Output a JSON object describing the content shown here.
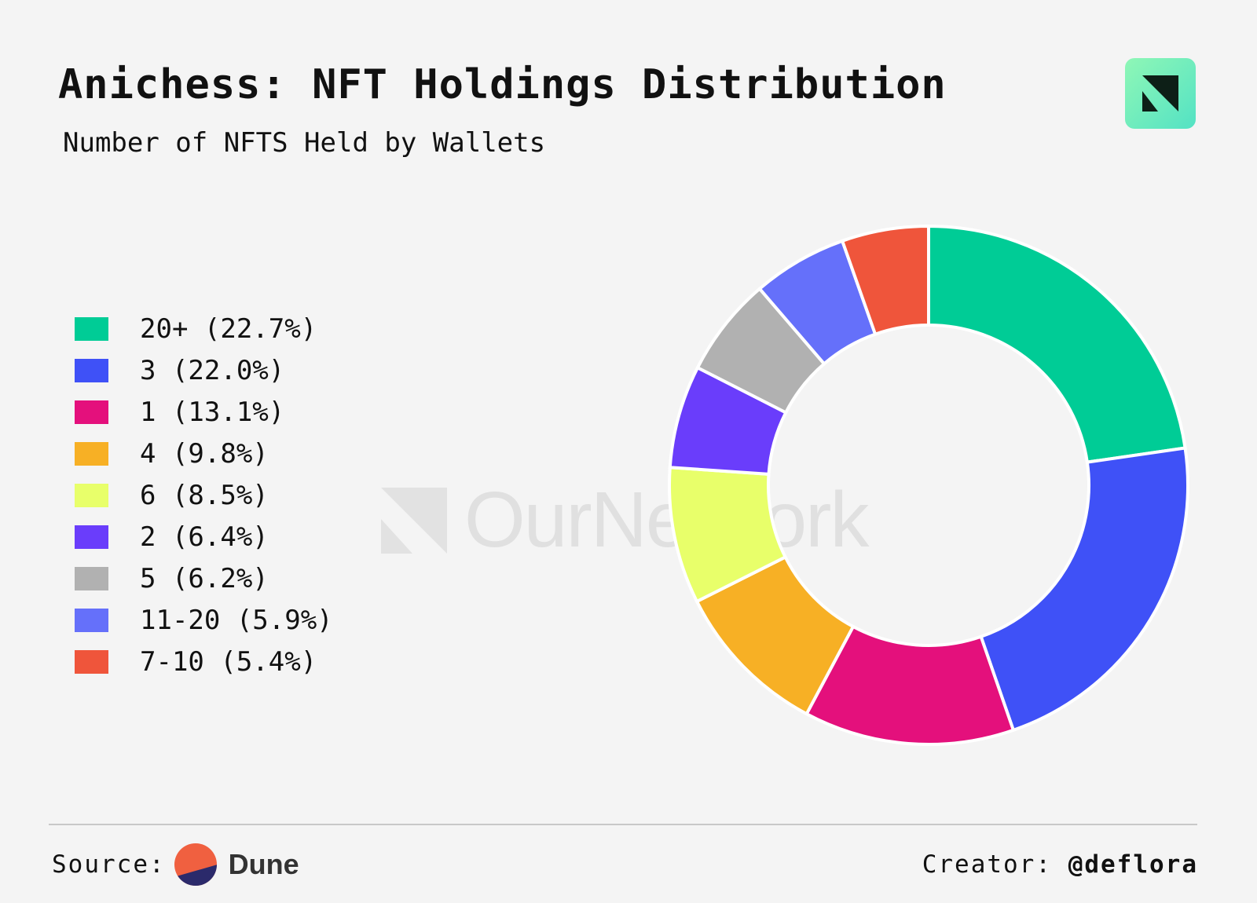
{
  "header": {
    "title": "Anichess: NFT Holdings Distribution",
    "subtitle": "Number of NFTS Held by Wallets"
  },
  "watermark": {
    "text": "OurNetwork"
  },
  "footer": {
    "source_label": "Source:",
    "source_name": "Dune",
    "creator_label": "Creator:",
    "creator_handle": "@deflora"
  },
  "chart_data": {
    "type": "pie",
    "style": "donut",
    "title": "Anichess: NFT Holdings Distribution",
    "subtitle": "Number of NFTS Held by Wallets",
    "legend_position": "left",
    "categories": [
      "20+",
      "3",
      "1",
      "4",
      "6",
      "2",
      "5",
      "11-20",
      "7-10"
    ],
    "values": [
      22.7,
      22.0,
      13.1,
      9.8,
      8.5,
      6.4,
      6.2,
      5.9,
      5.4
    ],
    "legend_labels": [
      "20+ (22.7%)",
      "3 (22.0%)",
      "1 (13.1%)",
      "4 (9.8%)",
      "6 (8.5%)",
      "2 (6.4%)",
      "5 (6.2%)",
      "11-20 (5.9%)",
      "7-10 (5.4%)"
    ],
    "colors": [
      "#00cc96",
      "#3f51f7",
      "#e4107c",
      "#f7b025",
      "#e8ff6a",
      "#6a3dfb",
      "#b1b1b1",
      "#6570fa",
      "#ef553b"
    ],
    "unit": "%",
    "slice_order": "clockwise from top"
  }
}
